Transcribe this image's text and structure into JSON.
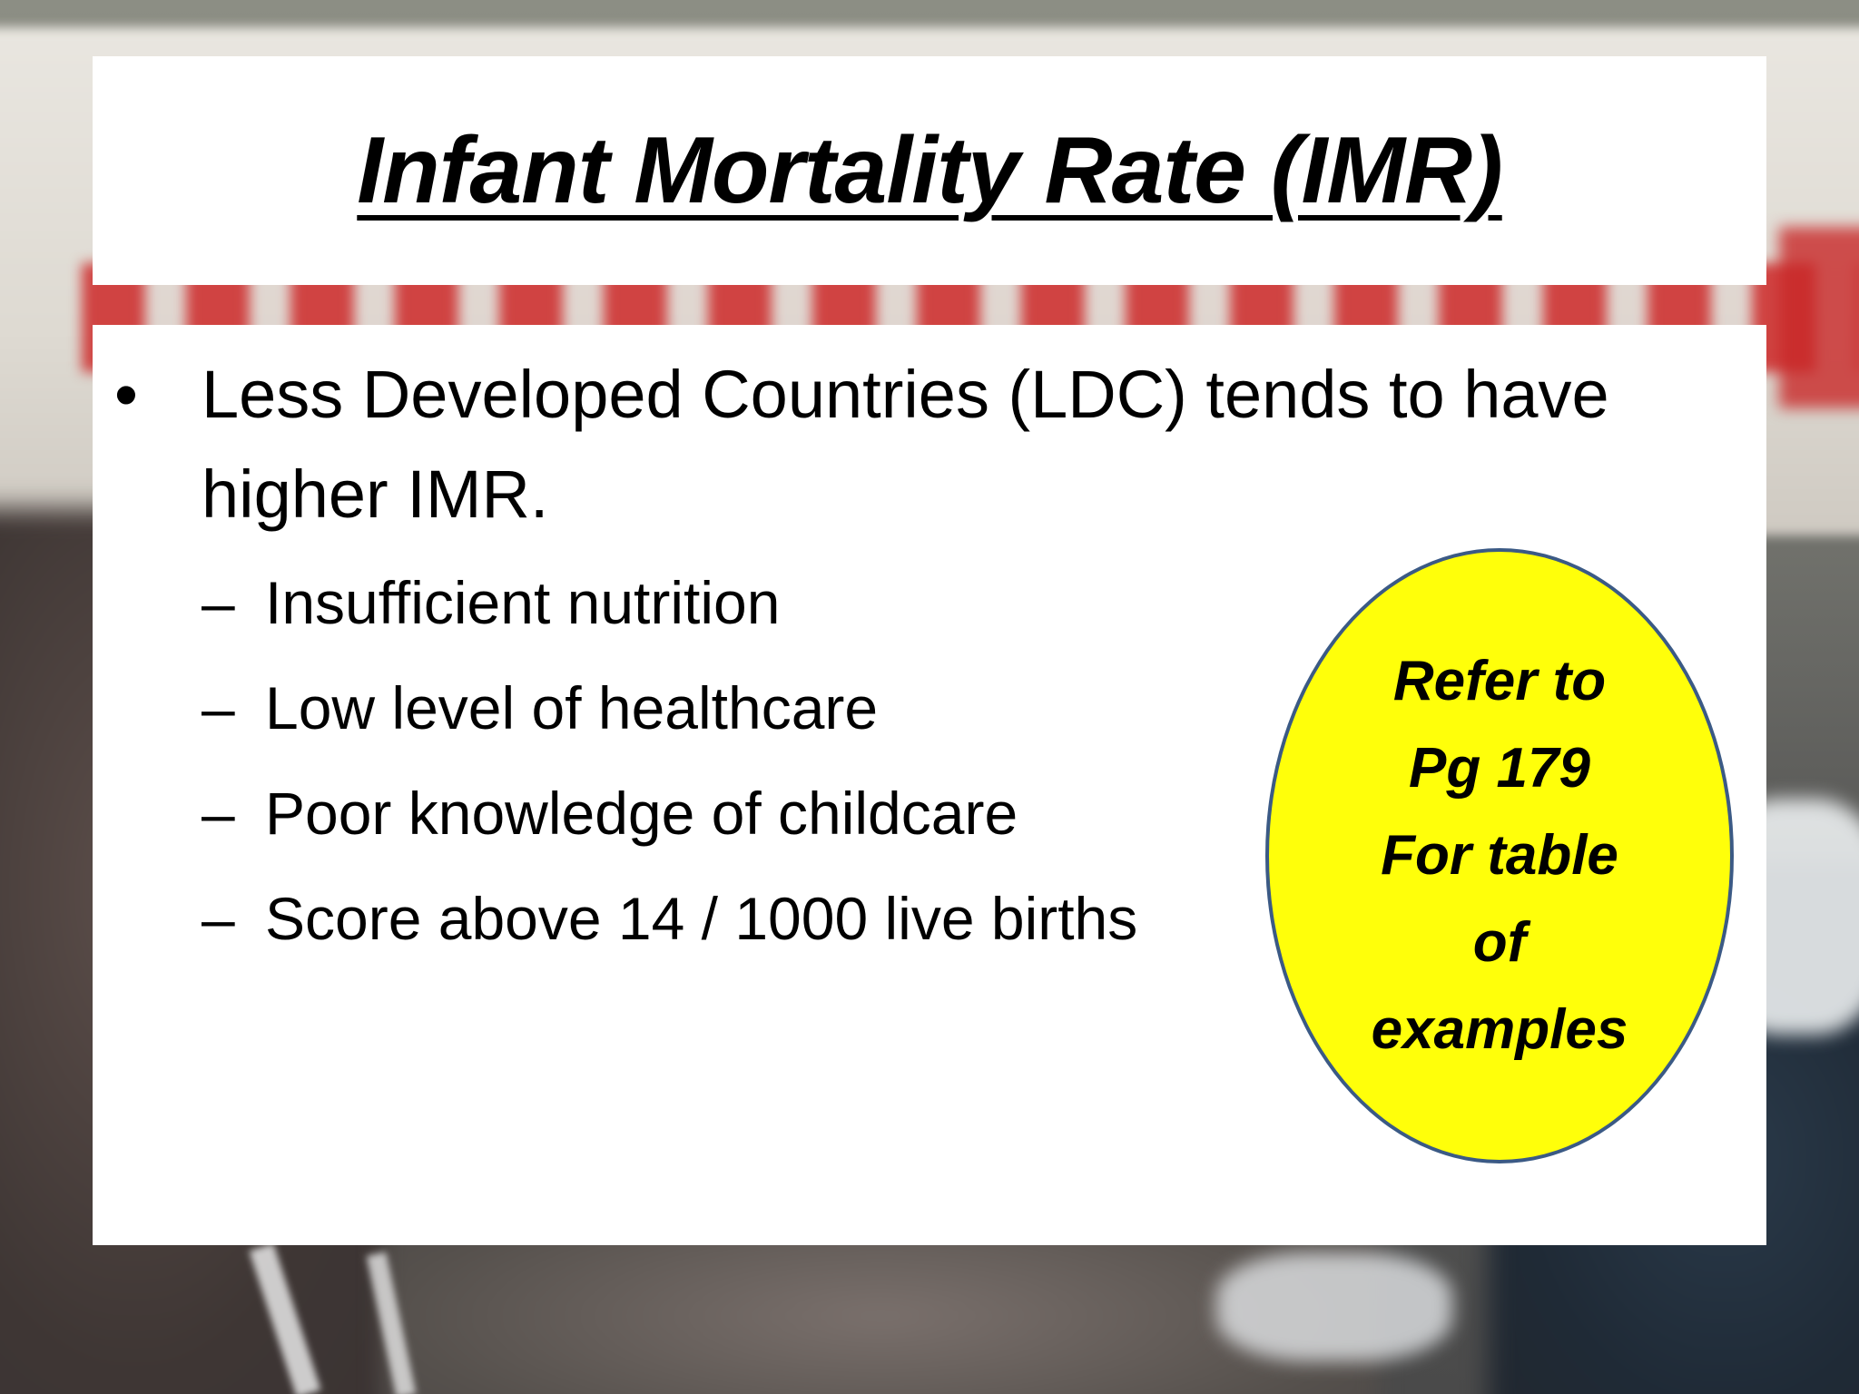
{
  "slide": {
    "title": "Infant Mortality Rate (IMR)",
    "bullet": {
      "marker": "•",
      "text_line1": "Less Developed Countries (LDC) tends to have",
      "text_line2": "higher IMR."
    },
    "sub_items": [
      {
        "dash": "–",
        "text": "Insufficient nutrition"
      },
      {
        "dash": "–",
        "text": "Low level of healthcare"
      },
      {
        "dash": "–",
        "text": "Poor knowledge of childcare"
      },
      {
        "dash": "–",
        "text": "Score above 14 / 1000 live births"
      }
    ],
    "callout": {
      "lines": [
        "Refer to",
        "Pg 179",
        "For table",
        "of",
        "examples"
      ],
      "fill_color": "#ffff0a",
      "border_color": "#3b5a85"
    }
  }
}
